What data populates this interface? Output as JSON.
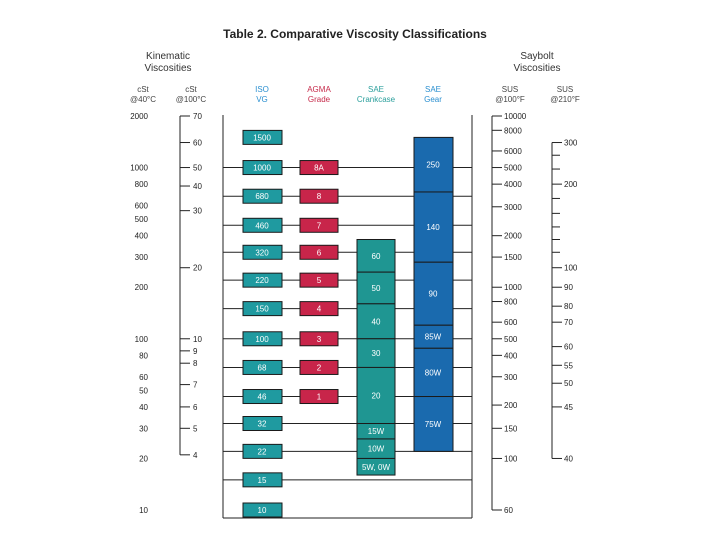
{
  "chart_data": {
    "type": "table",
    "title": "Table 2. Comparative Viscosity Classifications",
    "group_headers": {
      "kinematic": [
        "Kinematic",
        "Viscosities"
      ],
      "saybolt": [
        "Saybolt",
        "Viscosities"
      ]
    },
    "columns": {
      "cst40": [
        "cSt",
        "@40°C"
      ],
      "cst100": [
        "cSt",
        "@100°C"
      ],
      "iso": [
        "ISO",
        "VG"
      ],
      "agma": [
        "AGMA",
        "Grade"
      ],
      "sae_crank": [
        "SAE",
        "Crankcase"
      ],
      "sae_gear": [
        "SAE",
        "Gear"
      ],
      "sus100": [
        "SUS",
        "@100°F"
      ],
      "sus210": [
        "SUS",
        "@210°F"
      ]
    },
    "cst40_range": [
      10,
      2000
    ],
    "cst40_ticks": [
      {
        "value": 2000,
        "label": "2000"
      },
      {
        "value": 1000,
        "label": "1000"
      },
      {
        "value": 800,
        "label": "800"
      },
      {
        "value": 600,
        "label": "600"
      },
      {
        "value": 500,
        "label": "500"
      },
      {
        "value": 400,
        "label": "400"
      },
      {
        "value": 300,
        "label": "300"
      },
      {
        "value": 200,
        "label": "200"
      },
      {
        "value": 100,
        "label": "100"
      },
      {
        "value": 80,
        "label": "80"
      },
      {
        "value": 60,
        "label": "60"
      },
      {
        "value": 50,
        "label": "50"
      },
      {
        "value": 40,
        "label": "40"
      },
      {
        "value": 30,
        "label": "30"
      },
      {
        "value": 20,
        "label": "20"
      },
      {
        "value": 10,
        "label": "10"
      }
    ],
    "cst100_ticks": [
      {
        "label": "70",
        "at": 2000
      },
      {
        "label": "60",
        "at": 1400
      },
      {
        "label": "50",
        "at": 1000
      },
      {
        "label": "40",
        "at": 780
      },
      {
        "label": "30",
        "at": 560
      },
      {
        "label": "20",
        "at": 260
      },
      {
        "label": "10",
        "at": 100
      },
      {
        "label": "9",
        "at": 85
      },
      {
        "label": "8",
        "at": 72
      },
      {
        "label": "7",
        "at": 54
      },
      {
        "label": "6",
        "at": 40
      },
      {
        "label": "5",
        "at": 30
      },
      {
        "label": "4",
        "at": 21
      }
    ],
    "iso_vg": [
      {
        "label": "1500",
        "value": 1500
      },
      {
        "label": "1000",
        "value": 1000
      },
      {
        "label": "680",
        "value": 680
      },
      {
        "label": "460",
        "value": 460
      },
      {
        "label": "320",
        "value": 320
      },
      {
        "label": "220",
        "value": 220
      },
      {
        "label": "150",
        "value": 150
      },
      {
        "label": "100",
        "value": 100
      },
      {
        "label": "68",
        "value": 68
      },
      {
        "label": "46",
        "value": 46
      },
      {
        "label": "32",
        "value": 32
      },
      {
        "label": "22",
        "value": 22
      },
      {
        "label": "15",
        "value": 15
      },
      {
        "label": "10",
        "value": 10
      }
    ],
    "agma_grades": [
      {
        "label": "8A",
        "value": 1000
      },
      {
        "label": "8",
        "value": 680
      },
      {
        "label": "7",
        "value": 460
      },
      {
        "label": "6",
        "value": 320
      },
      {
        "label": "5",
        "value": 220
      },
      {
        "label": "4",
        "value": 150
      },
      {
        "label": "3",
        "value": 100
      },
      {
        "label": "2",
        "value": 68
      },
      {
        "label": "1",
        "value": 46
      }
    ],
    "sae_crankcase": [
      {
        "label": "60",
        "high": 380,
        "low": 245
      },
      {
        "label": "50",
        "high": 245,
        "low": 160
      },
      {
        "label": "40",
        "high": 160,
        "low": 100
      },
      {
        "label": "30",
        "high": 100,
        "low": 68
      },
      {
        "label": "20",
        "high": 68,
        "low": 32
      },
      {
        "label": "15W",
        "high": 32,
        "low": 26
      },
      {
        "label": "10W",
        "high": 26,
        "low": 20
      },
      {
        "label": "5W, 0W",
        "high": 20,
        "low": 16
      }
    ],
    "sae_gear": [
      {
        "label": "250",
        "high": 1500,
        "low": 720
      },
      {
        "label": "140",
        "high": 720,
        "low": 280
      },
      {
        "label": "90",
        "high": 280,
        "low": 120
      },
      {
        "label": "85W",
        "high": 120,
        "low": 88
      },
      {
        "label": "80W",
        "high": 88,
        "low": 46
      },
      {
        "label": "75W",
        "high": 46,
        "low": 22
      }
    ],
    "sus100_ticks": [
      {
        "label": "10000",
        "at": 2000
      },
      {
        "label": "8000",
        "at": 1650
      },
      {
        "label": "6000",
        "at": 1250
      },
      {
        "label": "5000",
        "at": 1000
      },
      {
        "label": "4000",
        "at": 800
      },
      {
        "label": "3000",
        "at": 590
      },
      {
        "label": "2000",
        "at": 400
      },
      {
        "label": "1500",
        "at": 300
      },
      {
        "label": "1000",
        "at": 200
      },
      {
        "label": "800",
        "at": 165
      },
      {
        "label": "600",
        "at": 125
      },
      {
        "label": "500",
        "at": 100
      },
      {
        "label": "400",
        "at": 80
      },
      {
        "label": "300",
        "at": 60
      },
      {
        "label": "200",
        "at": 41
      },
      {
        "label": "150",
        "at": 30
      },
      {
        "label": "100",
        "at": 20
      },
      {
        "label": "60",
        "at": 10
      }
    ],
    "sus210_ticks": [
      {
        "label": "300",
        "at": 1400,
        "minor": false
      },
      {
        "label": "",
        "at": 1180,
        "minor": true
      },
      {
        "label": "",
        "at": 980,
        "minor": true
      },
      {
        "label": "200",
        "at": 800,
        "minor": false
      },
      {
        "label": "",
        "at": 660,
        "minor": true
      },
      {
        "label": "",
        "at": 540,
        "minor": true
      },
      {
        "label": "",
        "at": 450,
        "minor": true
      },
      {
        "label": "",
        "at": 380,
        "minor": true
      },
      {
        "label": "",
        "at": 320,
        "minor": true
      },
      {
        "label": "100",
        "at": 260,
        "minor": false
      },
      {
        "label": "90",
        "at": 200,
        "minor": false
      },
      {
        "label": "80",
        "at": 155,
        "minor": false
      },
      {
        "label": "70",
        "at": 125,
        "minor": false
      },
      {
        "label": "60",
        "at": 90,
        "minor": false
      },
      {
        "label": "55",
        "at": 70,
        "minor": false
      },
      {
        "label": "50",
        "at": 55,
        "minor": false
      },
      {
        "label": "45",
        "at": 40,
        "minor": false
      },
      {
        "label": "40",
        "at": 20,
        "minor": false
      }
    ],
    "gridlines": [
      1000,
      680,
      460,
      320,
      220,
      150,
      100,
      68,
      46,
      32,
      22,
      15
    ],
    "colors": {
      "iso": "#1f9aa0",
      "agma": "#c8254a",
      "crankcase": "#1f9692",
      "gear": "#1a6aae",
      "box_border": "#1a1a1a",
      "text_dark": "#222222"
    }
  }
}
